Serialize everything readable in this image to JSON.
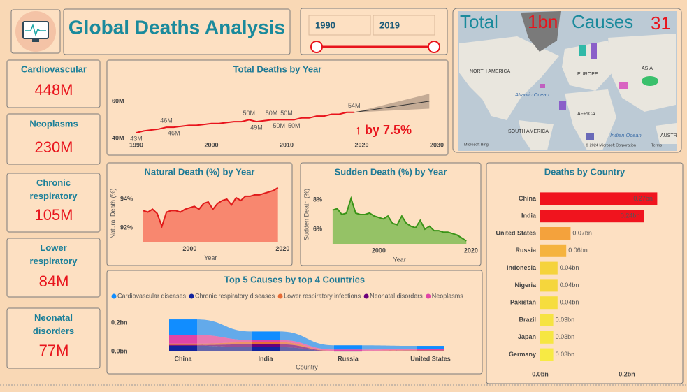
{
  "header": {
    "title": "Global Deaths Analysis"
  },
  "slicer": {
    "start": "1990",
    "end": "2019"
  },
  "summary": {
    "total_label": "Total",
    "total_value": "1bn",
    "causes_label": "Causes",
    "causes_value": "31"
  },
  "map": {
    "labels": [
      "NORTH AMERICA",
      "EUROPE",
      "ASIA",
      "Atlantic Ocean",
      "AFRICA",
      "SOUTH AMERICA",
      "Indian Ocean",
      "AUSTR"
    ],
    "credit": "Microsoft Bing",
    "copyright": "© 2024 Microsoft Corporation",
    "terms": "Terms"
  },
  "cards": [
    {
      "label": "Cardiovascular",
      "value": "448M"
    },
    {
      "label": "Neoplasms",
      "value": "230M"
    },
    {
      "label": "Chronic respiratory",
      "value": "105M"
    },
    {
      "label": "Lower respiratory",
      "value": "84M"
    },
    {
      "label": "Neonatal disorders",
      "value": "77M"
    }
  ],
  "chart_data": [
    {
      "type": "line",
      "title": "Total Deaths by Year",
      "x": [
        1990,
        1991,
        1992,
        1993,
        1994,
        1995,
        1996,
        1997,
        1998,
        1999,
        2000,
        2001,
        2002,
        2003,
        2004,
        2005,
        2006,
        2007,
        2008,
        2009,
        2010,
        2011,
        2012,
        2013,
        2014,
        2015,
        2016,
        2017,
        2018,
        2019
      ],
      "values": [
        43,
        44,
        44.5,
        45,
        46,
        46,
        46.5,
        47,
        47,
        47.5,
        48,
        48,
        48.5,
        49,
        49,
        50,
        49,
        49.5,
        50,
        50,
        50,
        50,
        51,
        51,
        52,
        52,
        53,
        53,
        54,
        54
      ],
      "value_labels": [
        "43M",
        null,
        null,
        null,
        "46M",
        "46M",
        null,
        null,
        null,
        null,
        null,
        null,
        null,
        null,
        null,
        "50M",
        "49M",
        null,
        "50M",
        "50M",
        "50M",
        "50M",
        null,
        null,
        null,
        null,
        null,
        null,
        null,
        "54M"
      ],
      "color": "#e8141c",
      "forecast": {
        "x": [
          2019,
          2029
        ],
        "values": [
          54,
          60
        ],
        "upper": [
          54,
          64
        ],
        "lower": [
          54,
          56
        ],
        "color": "#b59e8a"
      },
      "annotation": "↑ by 7.5%",
      "xlim": [
        1990,
        2030
      ],
      "ylim": [
        40,
        72
      ],
      "xticks": [
        1990,
        2000,
        2010,
        2020,
        2030
      ],
      "yticks": [
        {
          "value": 40,
          "label": "40M"
        },
        {
          "value": 60,
          "label": "60M"
        }
      ]
    },
    {
      "type": "area",
      "title": "Natural Death (%) by Year",
      "xlabel": "Year",
      "ylabel": "Natural Death (%)",
      "x": [
        1990,
        1991,
        1992,
        1993,
        1994,
        1995,
        1996,
        1997,
        1998,
        1999,
        2000,
        2001,
        2002,
        2003,
        2004,
        2005,
        2006,
        2007,
        2008,
        2009,
        2010,
        2011,
        2012,
        2013,
        2014,
        2015,
        2016,
        2017,
        2018,
        2019
      ],
      "values": [
        93.2,
        93.1,
        93.3,
        93.0,
        92.1,
        93.1,
        93.2,
        93.2,
        93.1,
        93.3,
        93.4,
        93.5,
        93.3,
        93.7,
        93.8,
        93.3,
        93.7,
        93.9,
        94.0,
        93.6,
        94.1,
        93.9,
        94.2,
        94.2,
        94.3,
        94.3,
        94.4,
        94.5,
        94.6,
        94.8
      ],
      "color": "#f8876f",
      "line_color": "#e01a1a",
      "xlim": [
        1988.5,
        2021
      ],
      "ylim": [
        91,
        95
      ],
      "xticks": [
        2000,
        2020
      ],
      "yticks": [
        {
          "value": 92,
          "label": "92%"
        },
        {
          "value": 94,
          "label": "94%"
        }
      ]
    },
    {
      "type": "area",
      "title": "Sudden Death (%) by Year",
      "xlabel": "Year",
      "ylabel": "Sudden Death (%)",
      "x": [
        1990,
        1991,
        1992,
        1993,
        1994,
        1995,
        1996,
        1997,
        1998,
        1999,
        2000,
        2001,
        2002,
        2003,
        2004,
        2005,
        2006,
        2007,
        2008,
        2009,
        2010,
        2011,
        2012,
        2013,
        2014,
        2015,
        2016,
        2017,
        2018,
        2019
      ],
      "values": [
        7.3,
        7.4,
        7.0,
        7.1,
        8.1,
        7.1,
        7.0,
        7.0,
        7.1,
        6.9,
        6.8,
        6.7,
        6.9,
        6.4,
        6.3,
        6.9,
        6.4,
        6.2,
        6.1,
        6.6,
        6.0,
        6.2,
        5.9,
        5.9,
        5.8,
        5.8,
        5.7,
        5.6,
        5.4,
        5.2
      ],
      "color": "#95c266",
      "line_color": "#3a9418",
      "xlim": [
        1988.5,
        2021
      ],
      "ylim": [
        5,
        9
      ],
      "xticks": [
        2000,
        2020
      ],
      "yticks": [
        {
          "value": 6,
          "label": "6%"
        },
        {
          "value": 8,
          "label": "8%"
        }
      ]
    },
    {
      "type": "bar",
      "orientation": "horizontal",
      "title": "Deaths by Country",
      "categories": [
        "China",
        "India",
        "United States",
        "Russia",
        "Indonesia",
        "Nigeria",
        "Pakistan",
        "Brazil",
        "Japan",
        "Germany"
      ],
      "values": [
        0.27,
        0.24,
        0.07,
        0.06,
        0.04,
        0.04,
        0.04,
        0.03,
        0.03,
        0.03
      ],
      "value_labels": [
        "0.27bn",
        "0.24bn",
        "0.07bn",
        "0.06bn",
        "0.04bn",
        "0.04bn",
        "0.04bn",
        "0.03bn",
        "0.03bn",
        "0.03bn"
      ],
      "colors": [
        "#f0141e",
        "#f0141e",
        "#f4a23c",
        "#f5b33e",
        "#f5d33c",
        "#f5d63c",
        "#f6dd3e",
        "#f6e342",
        "#f6e642",
        "#f7ea44"
      ],
      "xlim": [
        0,
        0.3
      ],
      "xticks": [
        {
          "value": 0,
          "label": "0.0bn"
        },
        {
          "value": 0.2,
          "label": "0.2bn"
        }
      ]
    },
    {
      "type": "ribbon",
      "title": "Top 5 Causes by top 4 Countries",
      "xlabel": "Country",
      "legend": "top-left",
      "categories": [
        "China",
        "India",
        "Russia",
        "United States"
      ],
      "series": [
        {
          "name": "Cardiovascular diseases",
          "color": "#118dff",
          "values": [
            0.11,
            0.06,
            0.03,
            0.02
          ]
        },
        {
          "name": "Chronic respiratory diseases",
          "color": "#12239e",
          "values": [
            0.04,
            0.03,
            0.002,
            0.005
          ]
        },
        {
          "name": "Lower respiratory infections",
          "color": "#e66c37",
          "values": [
            0.01,
            0.015,
            0.002,
            0.003
          ]
        },
        {
          "name": "Neonatal disorders",
          "color": "#6b007b",
          "values": [
            0.005,
            0.02,
            0.001,
            0.001
          ]
        },
        {
          "name": "Neoplasms",
          "color": "#e044a7",
          "values": [
            0.06,
            0.015,
            0.008,
            0.01
          ]
        }
      ],
      "ylim": [
        0,
        0.24
      ],
      "yticks": [
        {
          "value": 0,
          "label": "0.0bn"
        },
        {
          "value": 0.2,
          "label": "0.2bn"
        }
      ]
    }
  ]
}
